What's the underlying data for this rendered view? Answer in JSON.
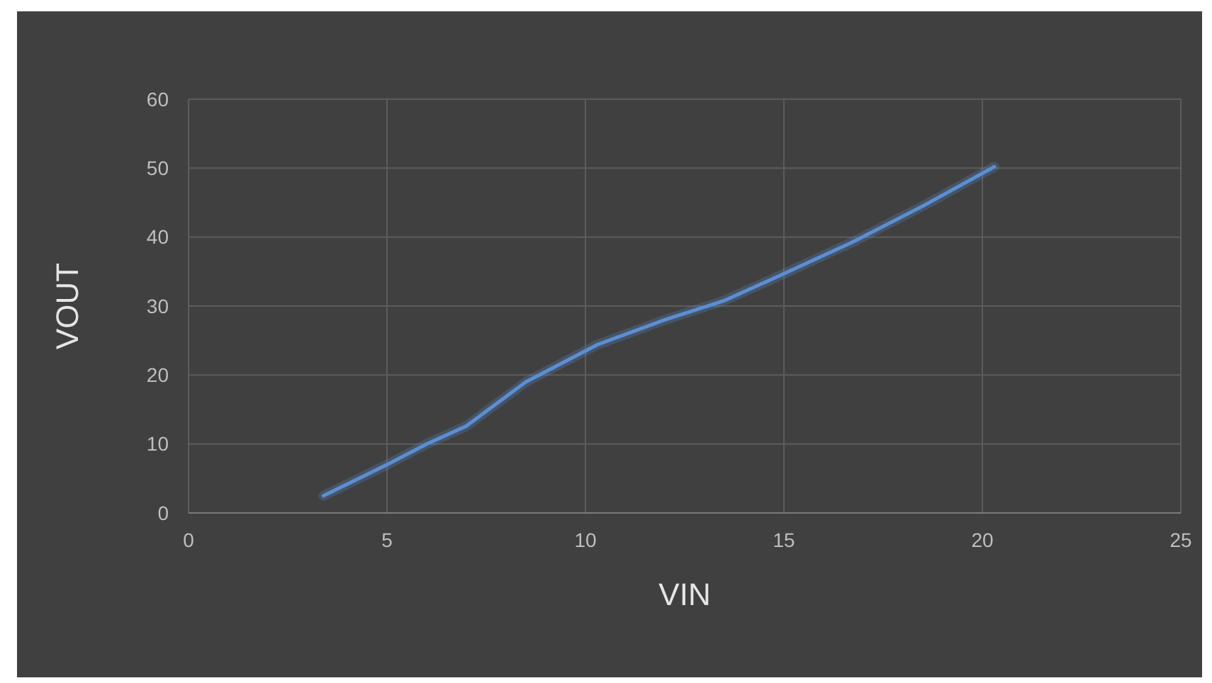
{
  "chart_data": {
    "type": "line",
    "xlabel": "VIN",
    "ylabel": "VOUT",
    "xlim": [
      0,
      25
    ],
    "ylim": [
      0,
      60
    ],
    "xticks": [
      0,
      5,
      10,
      15,
      20,
      25
    ],
    "yticks": [
      0,
      10,
      20,
      30,
      40,
      50,
      60
    ],
    "grid": true,
    "marker": "none",
    "line_style": "solid",
    "series": [
      {
        "color": "#5b8fd4",
        "x": [
          3.4,
          5,
          6,
          7,
          8.5,
          10.3,
          12,
          13.5,
          14.7,
          16.7,
          18.5,
          20.3
        ],
        "values": [
          2.5,
          7,
          10,
          12.6,
          19,
          24.4,
          28,
          30.8,
          33.9,
          39.2,
          44.5,
          50.2
        ]
      }
    ]
  }
}
